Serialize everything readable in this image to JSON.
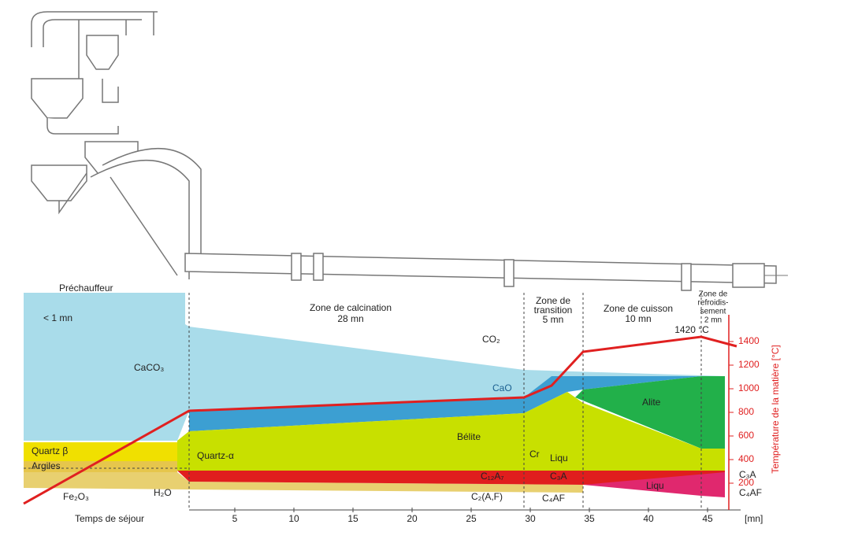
{
  "zones": [
    {
      "label": [
        "Préchauffeur"
      ],
      "duration": "< 1 mn"
    },
    {
      "label": [
        "Zone de calcination"
      ],
      "duration": "28 mn"
    },
    {
      "label": [
        "Zone de",
        "transition"
      ],
      "duration": "5 mn"
    },
    {
      "label": [
        "Zone de cuisson"
      ],
      "duration": "10 mn"
    },
    {
      "label": [
        "Zone de",
        "refroidis-",
        "sement"
      ],
      "duration": "2 mn"
    }
  ],
  "phases": {
    "caco3": "CaCO₃",
    "cao": "CaO",
    "belite": "Bélite",
    "alite": "Alite",
    "quartz_beta": "Quartz β",
    "quartz_alpha": "Quartz-α",
    "argiles": "Argiles",
    "fe2o3": "Fe₂O₃",
    "h2o": "H₂O",
    "co2": "CO₂",
    "cr": "Cr",
    "liqu_small": "Liqu",
    "c12a7": "C₁₂A₇",
    "c3a": "C₃A",
    "c2af": "C₂(A,F)",
    "c4af": "C₄AF",
    "liqu": "Liqu",
    "c3a_right": "C₃A",
    "c4af_right": "C₄AF"
  },
  "peak_label": "1420 °C",
  "x_axis": {
    "label": "Temps de séjour",
    "ticks": [
      5,
      10,
      15,
      20,
      25,
      30,
      35,
      40,
      45
    ],
    "unit": "[mn]"
  },
  "y_axis": {
    "label": "Température de la matière [°C]",
    "ticks": [
      200,
      400,
      600,
      800,
      1000,
      1200,
      1400
    ]
  }
}
